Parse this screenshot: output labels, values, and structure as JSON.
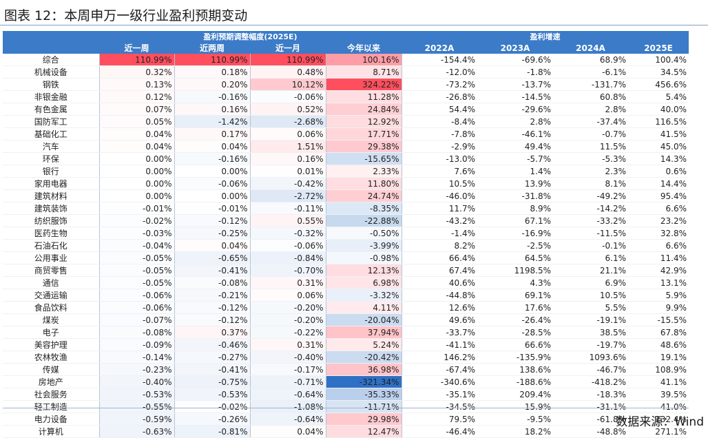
{
  "title": "图表 12：本周申万一级行业盈利预期变动",
  "header": {
    "group1": "盈利预期调整幅度(2025E)",
    "group2": "盈利增速",
    "columns": [
      "近一周",
      "近两周",
      "近一月",
      "今年以来",
      "2022A",
      "2023A",
      "2024A",
      "2025E"
    ]
  },
  "colors": {
    "header_bg": "#3b7bc8",
    "positive": "#f04f5f",
    "negative": "#2e6fc4"
  },
  "rows": [
    {
      "name": "综合",
      "v": [
        "110.99%",
        "110.99%",
        "110.99%",
        "100.16%",
        "-154.4%",
        "-69.6%",
        "68.9%",
        "100.4%"
      ]
    },
    {
      "name": "机械设备",
      "v": [
        "0.32%",
        "0.18%",
        "0.48%",
        "8.71%",
        "-12.0%",
        "-1.8%",
        "-6.1%",
        "34.5%"
      ]
    },
    {
      "name": "钢铁",
      "v": [
        "0.13%",
        "0.20%",
        "10.12%",
        "324.22%",
        "-73.2%",
        "-13.7%",
        "-131.7%",
        "456.6%"
      ]
    },
    {
      "name": "非银金融",
      "v": [
        "0.12%",
        "-0.16%",
        "-0.06%",
        "11.28%",
        "-26.8%",
        "-14.5%",
        "60.8%",
        "5.4%"
      ]
    },
    {
      "name": "有色金属",
      "v": [
        "0.07%",
        "0.16%",
        "0.52%",
        "24.84%",
        "54.4%",
        "-29.6%",
        "2.8%",
        "40.0%"
      ]
    },
    {
      "name": "国防军工",
      "v": [
        "0.05%",
        "-1.42%",
        "-2.68%",
        "12.92%",
        "-8.4%",
        "2.8%",
        "-37.4%",
        "116.5%"
      ]
    },
    {
      "name": "基础化工",
      "v": [
        "0.04%",
        "0.17%",
        "0.06%",
        "17.71%",
        "-7.8%",
        "-46.1%",
        "-0.7%",
        "41.5%"
      ]
    },
    {
      "name": "汽车",
      "v": [
        "0.04%",
        "0.04%",
        "1.51%",
        "29.38%",
        "-2.9%",
        "49.4%",
        "11.5%",
        "45.0%"
      ]
    },
    {
      "name": "环保",
      "v": [
        "0.00%",
        "-0.16%",
        "0.16%",
        "-15.65%",
        "-13.0%",
        "-5.7%",
        "-5.3%",
        "14.3%"
      ]
    },
    {
      "name": "银行",
      "v": [
        "0.00%",
        "0.00%",
        "0.01%",
        "2.33%",
        "7.6%",
        "1.4%",
        "2.3%",
        "0.6%"
      ]
    },
    {
      "name": "家用电器",
      "v": [
        "0.00%",
        "-0.06%",
        "-0.42%",
        "11.80%",
        "10.5%",
        "13.9%",
        "8.1%",
        "14.4%"
      ]
    },
    {
      "name": "建筑材料",
      "v": [
        "0.00%",
        "0.00%",
        "-2.72%",
        "24.74%",
        "-46.0%",
        "-31.8%",
        "-49.2%",
        "95.4%"
      ]
    },
    {
      "name": "建筑装饰",
      "v": [
        "-0.01%",
        "-0.01%",
        "-0.11%",
        "-8.35%",
        "11.7%",
        "8.9%",
        "-14.2%",
        "6.6%"
      ]
    },
    {
      "name": "纺织服饰",
      "v": [
        "-0.02%",
        "-0.12%",
        "0.55%",
        "-22.88%",
        "-43.2%",
        "67.1%",
        "-33.2%",
        "23.2%"
      ]
    },
    {
      "name": "医药生物",
      "v": [
        "-0.03%",
        "-0.25%",
        "-0.32%",
        "-0.50%",
        "-1.4%",
        "-16.9%",
        "-11.5%",
        "32.8%"
      ]
    },
    {
      "name": "石油石化",
      "v": [
        "-0.04%",
        "0.04%",
        "-0.06%",
        "-3.99%",
        "8.2%",
        "-2.5%",
        "-0.1%",
        "6.6%"
      ]
    },
    {
      "name": "公用事业",
      "v": [
        "-0.05%",
        "-0.65%",
        "-0.84%",
        "-0.98%",
        "66.4%",
        "64.5%",
        "6.1%",
        "11.4%"
      ]
    },
    {
      "name": "商贸零售",
      "v": [
        "-0.05%",
        "-0.41%",
        "-0.70%",
        "12.13%",
        "67.4%",
        "1198.5%",
        "21.1%",
        "42.9%"
      ]
    },
    {
      "name": "通信",
      "v": [
        "-0.05%",
        "-0.08%",
        "0.31%",
        "6.98%",
        "40.6%",
        "4.3%",
        "6.9%",
        "13.1%"
      ]
    },
    {
      "name": "交通运输",
      "v": [
        "-0.06%",
        "-0.21%",
        "0.06%",
        "-3.32%",
        "-44.8%",
        "69.1%",
        "10.5%",
        "5.9%"
      ]
    },
    {
      "name": "食品饮料",
      "v": [
        "-0.06%",
        "-0.12%",
        "-0.20%",
        "4.11%",
        "12.6%",
        "17.6%",
        "5.5%",
        "9.9%"
      ]
    },
    {
      "name": "煤炭",
      "v": [
        "-0.07%",
        "-0.12%",
        "-0.20%",
        "-20.04%",
        "49.6%",
        "-26.4%",
        "-19.1%",
        "-15.5%"
      ]
    },
    {
      "name": "电子",
      "v": [
        "-0.08%",
        "0.37%",
        "-0.22%",
        "37.94%",
        "-33.7%",
        "-28.5%",
        "38.5%",
        "67.8%"
      ]
    },
    {
      "name": "美容护理",
      "v": [
        "-0.09%",
        "-0.46%",
        "0.31%",
        "5.24%",
        "-41.1%",
        "66.6%",
        "-19.7%",
        "48.6%"
      ]
    },
    {
      "name": "农林牧渔",
      "v": [
        "-0.14%",
        "-0.27%",
        "-0.40%",
        "-20.42%",
        "146.2%",
        "-135.9%",
        "1093.6%",
        "19.1%"
      ]
    },
    {
      "name": "传媒",
      "v": [
        "-0.23%",
        "-0.41%",
        "-0.17%",
        "36.98%",
        "-67.4%",
        "138.6%",
        "-46.7%",
        "108.9%"
      ]
    },
    {
      "name": "房地产",
      "v": [
        "-0.40%",
        "-0.75%",
        "-0.71%",
        "-321.34%",
        "-340.6%",
        "-188.6%",
        "-418.2%",
        "41.1%"
      ]
    },
    {
      "name": "社会服务",
      "v": [
        "-0.53%",
        "-0.53%",
        "-0.64%",
        "-35.33%",
        "-35.1%",
        "209.4%",
        "-18.3%",
        "39.5%"
      ]
    },
    {
      "name": "轻工制造",
      "v": [
        "-0.55%",
        "-0.02%",
        "-1.08%",
        "-11.71%",
        "-34.5%",
        "15.9%",
        "-31.1%",
        "41.0%"
      ]
    },
    {
      "name": "电力设备",
      "v": [
        "-0.59%",
        "-0.26%",
        "-0.64%",
        "29.98%",
        "79.5%",
        "-9.5%",
        "-61.8%",
        "132.4%"
      ]
    },
    {
      "name": "计算机",
      "v": [
        "-0.63%",
        "-0.81%",
        "0.04%",
        "12.47%",
        "-46.4%",
        "18.2%",
        "-48.8%",
        "271.1%"
      ]
    }
  ],
  "source": "数据来源：Wind"
}
